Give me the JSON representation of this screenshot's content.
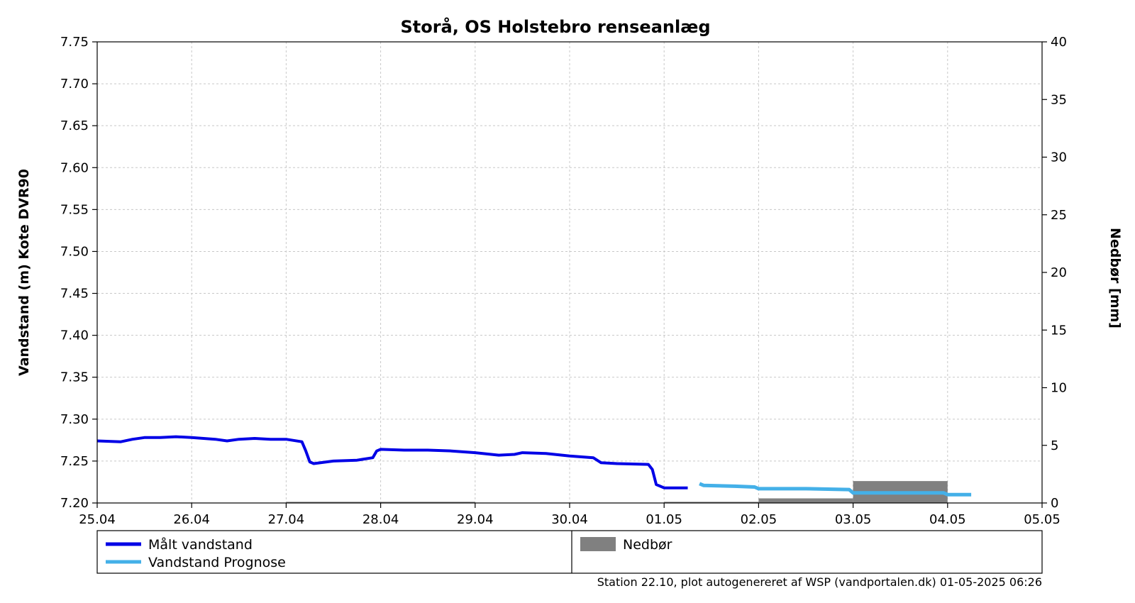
{
  "chart_data": {
    "type": "line",
    "title": "Storå, OS Holstebro renseanlæg",
    "ylabel": "Vandstand (m) Kote DVR90",
    "y2label": "Nedbør [mm]",
    "xlim": [
      "25.04",
      "05.05"
    ],
    "ylim": [
      7.2,
      7.75
    ],
    "y2lim": [
      0,
      40
    ],
    "grid": true,
    "legend_position": "below",
    "x_ticks": [
      "25.04",
      "26.04",
      "27.04",
      "28.04",
      "29.04",
      "30.04",
      "01.05",
      "02.05",
      "03.05",
      "04.05",
      "05.05"
    ],
    "y_ticks": [
      "7.20",
      "7.25",
      "7.30",
      "7.35",
      "7.40",
      "7.45",
      "7.50",
      "7.55",
      "7.60",
      "7.65",
      "7.70",
      "7.75"
    ],
    "y2_ticks": [
      "0",
      "5",
      "10",
      "15",
      "20",
      "25",
      "30",
      "35",
      "40"
    ],
    "series": [
      {
        "name": "Målt vandstand",
        "color": "#0000e6",
        "points": [
          [
            "25.04 00:00",
            7.274
          ],
          [
            "25.04 06:00",
            7.273
          ],
          [
            "25.04 09:00",
            7.276
          ],
          [
            "25.04 12:00",
            7.278
          ],
          [
            "25.04 16:00",
            7.278
          ],
          [
            "25.04 20:00",
            7.279
          ],
          [
            "26.04 00:00",
            7.278
          ],
          [
            "26.04 06:00",
            7.276
          ],
          [
            "26.04 09:00",
            7.274
          ],
          [
            "26.04 12:00",
            7.276
          ],
          [
            "26.04 16:00",
            7.277
          ],
          [
            "26.04 20:00",
            7.276
          ],
          [
            "27.04 00:00",
            7.276
          ],
          [
            "27.04 04:00",
            7.273
          ],
          [
            "27.04 05:00",
            7.262
          ],
          [
            "27.04 06:00",
            7.249
          ],
          [
            "27.04 07:00",
            7.247
          ],
          [
            "27.04 12:00",
            7.25
          ],
          [
            "27.04 18:00",
            7.251
          ],
          [
            "27.04 22:00",
            7.254
          ],
          [
            "27.04 23:00",
            7.262
          ],
          [
            "28.04 00:00",
            7.264
          ],
          [
            "28.04 06:00",
            7.263
          ],
          [
            "28.04 12:00",
            7.263
          ],
          [
            "28.04 18:00",
            7.262
          ],
          [
            "29.04 00:00",
            7.26
          ],
          [
            "29.04 06:00",
            7.257
          ],
          [
            "29.04 10:00",
            7.258
          ],
          [
            "29.04 12:00",
            7.26
          ],
          [
            "29.04 18:00",
            7.259
          ],
          [
            "30.04 00:00",
            7.256
          ],
          [
            "30.04 06:00",
            7.254
          ],
          [
            "30.04 08:00",
            7.248
          ],
          [
            "30.04 12:00",
            7.247
          ],
          [
            "30.04 20:00",
            7.246
          ],
          [
            "30.04 21:00",
            7.24
          ],
          [
            "30.04 22:00",
            7.222
          ],
          [
            "01.05 00:00",
            7.218
          ],
          [
            "01.05 06:00",
            7.218
          ]
        ]
      },
      {
        "name": "Vandstand Prognose",
        "color": "#44b0e8",
        "points": [
          [
            "01.05 09:00",
            7.223
          ],
          [
            "01.05 10:00",
            7.221
          ],
          [
            "01.05 18:00",
            7.22
          ],
          [
            "01.05 23:00",
            7.219
          ],
          [
            "02.05 00:00",
            7.217
          ],
          [
            "02.05 12:00",
            7.217
          ],
          [
            "02.05 23:00",
            7.216
          ],
          [
            "03.05 00:00",
            7.212
          ],
          [
            "03.05 12:00",
            7.212
          ],
          [
            "03.05 23:00",
            7.212
          ],
          [
            "04.05 00:00",
            7.21
          ],
          [
            "04.05 06:00",
            7.21
          ]
        ]
      },
      {
        "name": "Nedbør",
        "type": "bar",
        "axis": "y2",
        "color": "#808080",
        "bars": [
          {
            "from": "27.04",
            "to": "29.04",
            "value": 0.1
          },
          {
            "from": "01.05",
            "to": "02.05",
            "value": 0.1
          },
          {
            "from": "02.05",
            "to": "03.05",
            "value": 0.4
          },
          {
            "from": "03.05",
            "to": "04.05",
            "value": 1.9
          }
        ]
      }
    ]
  },
  "legend": {
    "items": [
      {
        "label": "Målt vandstand",
        "color": "#0000e6",
        "style": "line"
      },
      {
        "label": "Vandstand Prognose",
        "color": "#44b0e8",
        "style": "line"
      },
      {
        "label": "Nedbør",
        "color": "#808080",
        "style": "box"
      }
    ]
  },
  "footer": "Station 22.10, plot autogenereret af WSP (vandportalen.dk) 01-05-2025 06:26"
}
